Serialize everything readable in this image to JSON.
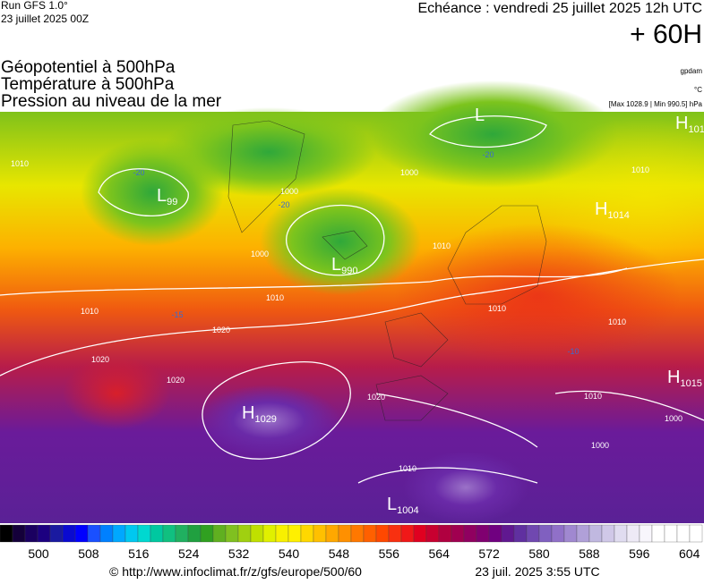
{
  "header": {
    "run": "Run GFS 1.0°",
    "run_date": "23 juillet 2025 00Z",
    "valid": "Echéance : vendredi 25 juillet 2025 12h UTC",
    "lead": "+ 60H"
  },
  "fields": [
    "Géopotentiel à 500hPa",
    "Température à 500hPa",
    "Pression au niveau de la mer"
  ],
  "units": {
    "geopotential": "gpdam",
    "temperature": "°C",
    "pressure": "[Max 1028.9 | Min 990.5] hPa"
  },
  "centers": [
    {
      "letter": "L",
      "value": ""
    },
    {
      "letter": "H",
      "value": "101"
    },
    {
      "letter": "L",
      "value": "99"
    },
    {
      "letter": "L",
      "value": "990"
    },
    {
      "letter": "H",
      "value": "1014"
    },
    {
      "letter": "H",
      "value": "1029"
    },
    {
      "letter": "H",
      "value": "1015"
    },
    {
      "letter": "L",
      "value": "1004"
    }
  ],
  "contour_labels": [
    "1010",
    "1000",
    "1000",
    "1000",
    "1010",
    "1010",
    "1020",
    "1020",
    "1020",
    "1010",
    "1010",
    "1010",
    "1020",
    "1010",
    "1010",
    "1000",
    "1000",
    "1010"
  ],
  "temperature_labels": [
    "-20",
    "-20",
    "-20",
    "-15",
    "-10"
  ],
  "colorbar_ticks": [
    "500",
    "508",
    "516",
    "524",
    "532",
    "540",
    "548",
    "556",
    "564",
    "572",
    "580",
    "588",
    "596",
    "604"
  ],
  "footer": {
    "url": "© http://www.infoclimat.fr/z/gfs/europe/500/60",
    "timestamp": "23 juil. 2025  3:55 UTC"
  }
}
